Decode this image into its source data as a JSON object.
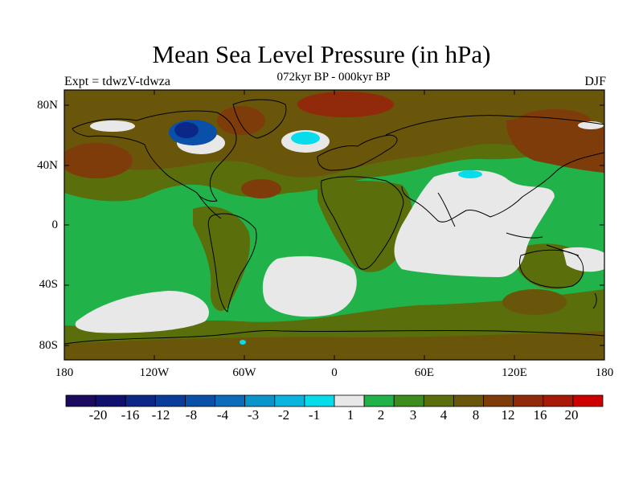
{
  "title": "Mean Sea Level Pressure (in hPa)",
  "subtitle": "072kyr BP - 000kyr BP",
  "left_label": "Expt = tdwzV-tdwza",
  "right_label": "DJF",
  "y_ticks": [
    "80N",
    "40N",
    "0",
    "40S",
    "80S"
  ],
  "x_ticks": [
    "180",
    "120W",
    "60W",
    "0",
    "60E",
    "120E",
    "180"
  ],
  "colorbar": {
    "colors": [
      "#1b0a5e",
      "#10106e",
      "#0b2888",
      "#0a3c9c",
      "#0a50a8",
      "#0a6cba",
      "#0a94cc",
      "#0ab4de",
      "#06dcec",
      "#e8e8e8",
      "#22b24a",
      "#3c8c1e",
      "#5a6e0c",
      "#6a560a",
      "#7e3c0a",
      "#902a0a",
      "#a81a08",
      "#cc0000"
    ],
    "labels": [
      "-20",
      "-16",
      "-12",
      "-8",
      "-4",
      "-3",
      "-2",
      "-1",
      "1",
      "2",
      "3",
      "4",
      "8",
      "12",
      "16",
      "20"
    ]
  },
  "colors": {
    "green": "#22b24a",
    "olive": "#5a6e0c",
    "brown": "#6a560a",
    "rust": "#7e3c0a",
    "red": "#902a0a",
    "near_zero": "#e8e8e8",
    "cyan": "#06dcec",
    "blue": "#0a50a8",
    "navy": "#0b2888"
  }
}
